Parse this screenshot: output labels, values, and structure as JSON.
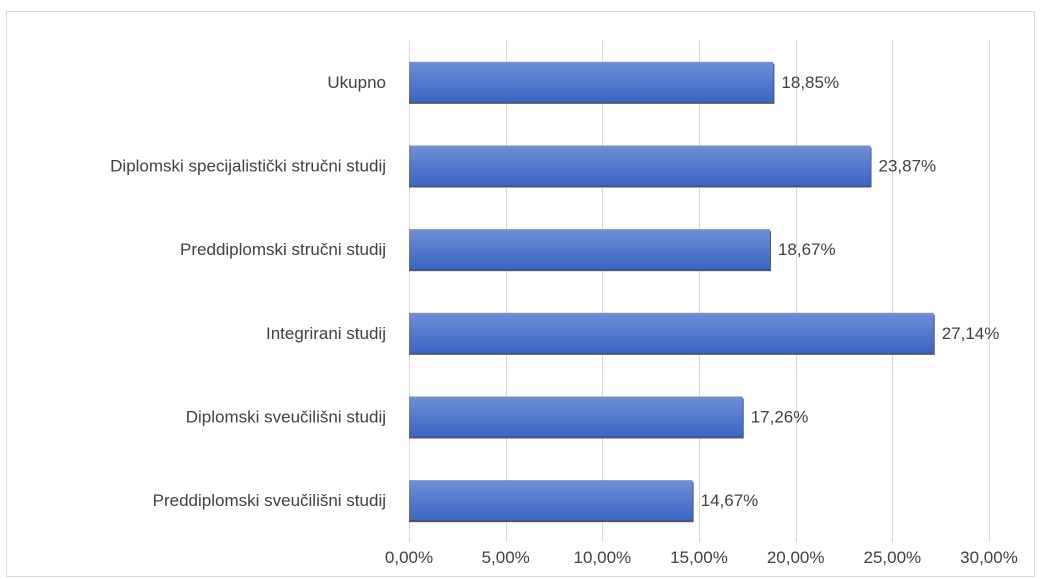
{
  "chart_data": {
    "type": "bar",
    "orientation": "horizontal",
    "title": "",
    "xlabel": "",
    "ylabel": "",
    "categories": [
      "Ukupno",
      "Diplomski specijalistički stručni studij",
      "Preddiplomski stručni studij",
      "Integrirani studij",
      "Diplomski sveučilišni studij",
      "Preddiplomski sveučilišni studij"
    ],
    "values": [
      18.85,
      23.87,
      18.67,
      27.14,
      17.26,
      14.67
    ],
    "data_labels": [
      "18,85%",
      "23,87%",
      "18,67%",
      "27,14%",
      "17,26%",
      "14,67%"
    ],
    "xlim": [
      0,
      30
    ],
    "x_ticks": [
      0,
      5,
      10,
      15,
      20,
      25,
      30
    ],
    "x_tick_labels": [
      "0,00%",
      "5,00%",
      "10,00%",
      "15,00%",
      "20,00%",
      "25,00%",
      "30,00%"
    ],
    "grid": true,
    "legend": "none",
    "colors": {
      "bar_top": "#6f8fd8",
      "bar_bottom": "#3a65c4",
      "bar_shadow": "#555555",
      "gridline": "#d9d9d9",
      "text": "#404040"
    }
  }
}
